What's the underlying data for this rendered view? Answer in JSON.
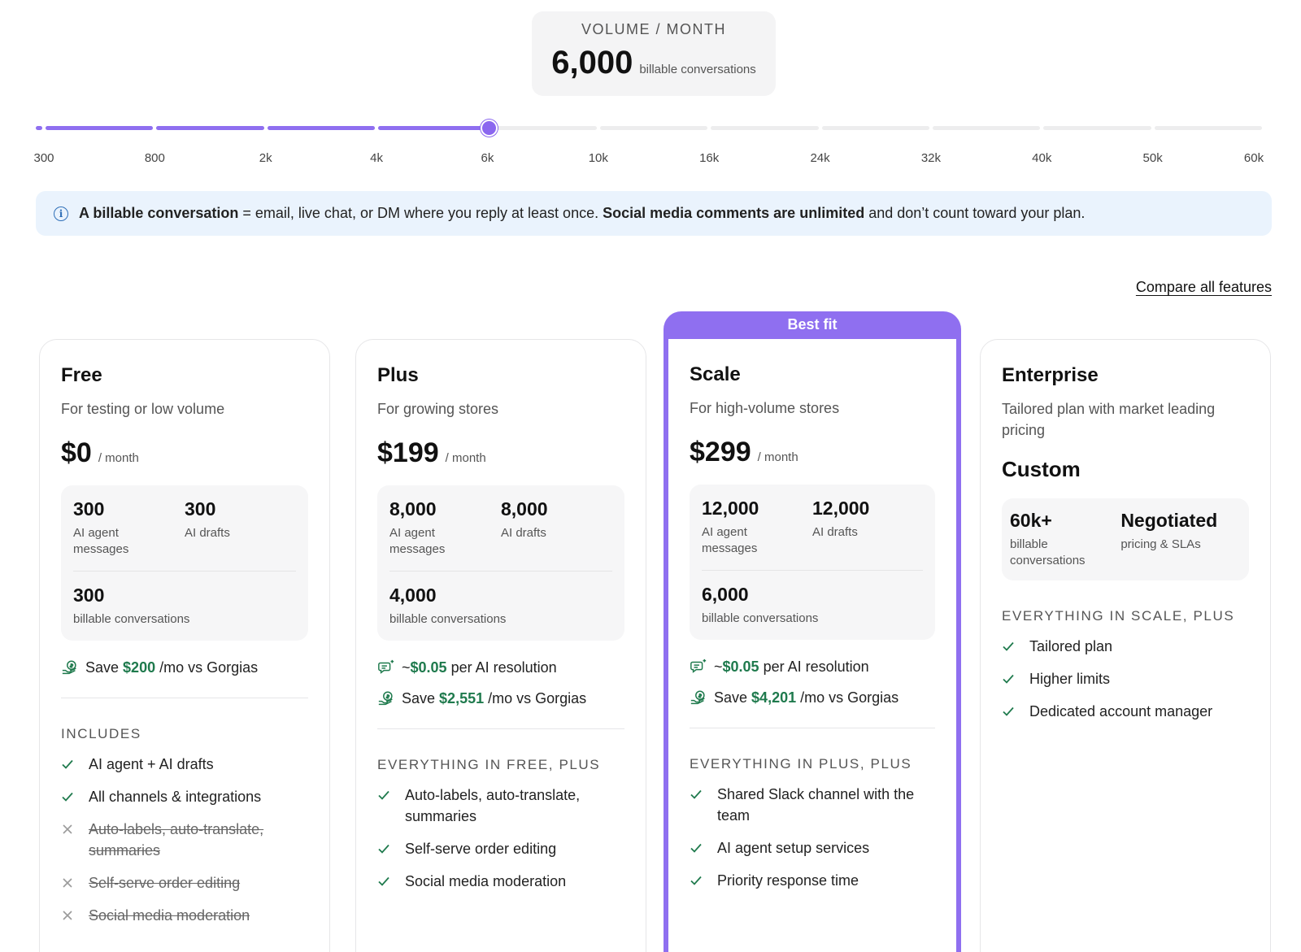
{
  "volume": {
    "title": "VOLUME / MONTH",
    "value": "6,000",
    "unit": "billable conversations"
  },
  "slider": {
    "ticks": [
      "300",
      "800",
      "2k",
      "4k",
      "6k",
      "10k",
      "16k",
      "24k",
      "32k",
      "40k",
      "50k",
      "60k"
    ],
    "selected_value": "6k",
    "selected_index": 4
  },
  "info": {
    "lead_bold": "A billable conversation",
    "lead_rest": " = email, live chat, or DM where you reply at least once. ",
    "mid_bold": "Social media comments are unlimited",
    "tail": " and don’t count toward your plan."
  },
  "compare_link": "Compare all features",
  "best_fit": "Best fit",
  "plans": [
    {
      "name": "Free",
      "subtitle": "For testing or low volume",
      "price": "$0",
      "per": "/ month",
      "stats": [
        {
          "num": "300",
          "label": "AI agent messages"
        },
        {
          "num": "300",
          "label": "AI drafts"
        },
        {
          "num": "300",
          "label": "billable conversations"
        }
      ],
      "save_pre": "Save",
      "save_amount": "$200",
      "save_post": "/mo vs Gorgias",
      "section": "INCLUDES",
      "features": [
        {
          "label": "AI agent + AI drafts",
          "included": true
        },
        {
          "label": "All channels & integrations",
          "included": true
        },
        {
          "label": "Auto-labels, auto-translate, summaries",
          "included": false
        },
        {
          "label": "Self-serve order editing",
          "included": false
        },
        {
          "label": "Social media moderation",
          "included": false
        }
      ]
    },
    {
      "name": "Plus",
      "subtitle": "For growing stores",
      "price": "$199",
      "per": "/ month",
      "stats": [
        {
          "num": "8,000",
          "label": "AI agent messages"
        },
        {
          "num": "8,000",
          "label": "AI drafts"
        },
        {
          "num": "4,000",
          "label": "billable conversations"
        }
      ],
      "resolution_pre": "~",
      "resolution_amount": "$0.05",
      "resolution_post": "per AI resolution",
      "save_pre": "Save",
      "save_amount": "$2,551",
      "save_post": "/mo vs Gorgias",
      "section": "EVERYTHING IN FREE, PLUS",
      "features": [
        {
          "label": "Auto-labels, auto-translate, summaries",
          "included": true
        },
        {
          "label": "Self-serve order editing",
          "included": true
        },
        {
          "label": "Social media moderation",
          "included": true
        }
      ]
    },
    {
      "name": "Scale",
      "subtitle": "For high-volume stores",
      "price": "$299",
      "per": "/ month",
      "stats": [
        {
          "num": "12,000",
          "label": "AI agent messages"
        },
        {
          "num": "12,000",
          "label": "AI drafts"
        },
        {
          "num": "6,000",
          "label": "billable conversations"
        }
      ],
      "resolution_pre": "~",
      "resolution_amount": "$0.05",
      "resolution_post": "per AI resolution",
      "save_pre": "Save",
      "save_amount": "$4,201",
      "save_post": "/mo vs Gorgias",
      "section": "EVERYTHING IN PLUS, PLUS",
      "features": [
        {
          "label": "Shared Slack channel with the team",
          "included": true
        },
        {
          "label": "AI agent setup services",
          "included": true
        },
        {
          "label": "Priority response time",
          "included": true
        }
      ]
    },
    {
      "name": "Enterprise",
      "subtitle": "Tailored plan with market leading pricing",
      "price": "Custom",
      "stats": [
        {
          "num": "60k+",
          "label": "billable conversations"
        },
        {
          "num": "Negotiated",
          "label": "pricing & SLAs"
        }
      ],
      "section": "EVERYTHING IN SCALE, PLUS",
      "features": [
        {
          "label": "Tailored plan",
          "included": true
        },
        {
          "label": "Higher limits",
          "included": true
        },
        {
          "label": "Dedicated account manager",
          "included": true
        }
      ]
    }
  ],
  "colors": {
    "accent": "#8f6ff0",
    "savings_green": "#1f7a4d",
    "info_bg": "#eaf3fd"
  }
}
